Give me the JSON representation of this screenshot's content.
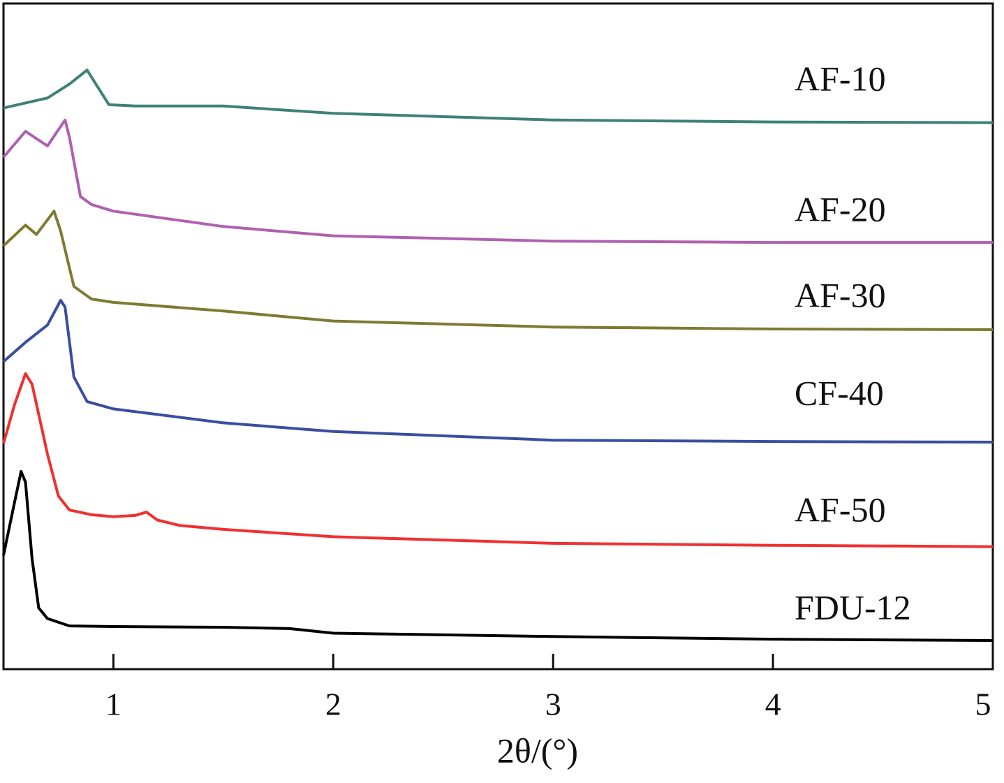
{
  "chart_data": {
    "type": "line",
    "x_label": "2θ/(°)",
    "xlim": [
      0.5,
      5
    ],
    "xticks": [
      1,
      2,
      3,
      4,
      5
    ],
    "ylim": [
      0,
      100
    ],
    "series": [
      {
        "name": "AF-10",
        "color": "#3f8079",
        "x": [
          0.5,
          0.7,
          0.8,
          0.88,
          0.92,
          0.98,
          1.1,
          1.5,
          2,
          3,
          4,
          5
        ],
        "values": [
          84.3,
          85.8,
          87.9,
          90.0,
          87.9,
          84.8,
          84.6,
          84.6,
          83.5,
          82.5,
          82.2,
          82.1
        ]
      },
      {
        "name": "AF-20",
        "color": "#b060b0",
        "x": [
          0.5,
          0.6,
          0.7,
          0.78,
          0.8,
          0.85,
          0.9,
          1.0,
          1.5,
          2,
          3,
          4,
          5
        ],
        "values": [
          76.9,
          80.8,
          78.6,
          82.5,
          79.9,
          71.0,
          69.8,
          68.8,
          66.5,
          65.1,
          64.3,
          64.1,
          64.1
        ]
      },
      {
        "name": "AF-30",
        "color": "#7f7a32",
        "x": [
          0.5,
          0.6,
          0.65,
          0.73,
          0.76,
          0.82,
          0.9,
          1.0,
          1.5,
          2,
          3,
          4,
          5
        ],
        "values": [
          63.6,
          66.7,
          65.3,
          68.8,
          65.8,
          57.5,
          55.6,
          55.1,
          53.8,
          52.3,
          51.4,
          51.1,
          51.0
        ]
      },
      {
        "name": "CF-40",
        "color": "#3a4ea0",
        "x": [
          0.5,
          0.6,
          0.7,
          0.76,
          0.78,
          0.82,
          0.88,
          1.0,
          1.5,
          2,
          3,
          4,
          5
        ],
        "values": [
          46.2,
          49.1,
          51.7,
          55.4,
          54.4,
          43.9,
          40.2,
          39.1,
          37.0,
          35.7,
          34.4,
          34.2,
          34.1
        ]
      },
      {
        "name": "AF-50",
        "color": "#f03030",
        "x": [
          0.5,
          0.55,
          0.6,
          0.63,
          0.7,
          0.75,
          0.8,
          0.9,
          1.0,
          1.1,
          1.15,
          1.2,
          1.3,
          1.5,
          2,
          3,
          4,
          5
        ],
        "values": [
          33.9,
          39.7,
          44.4,
          42.8,
          32.3,
          26.0,
          23.9,
          23.2,
          22.9,
          23.1,
          23.6,
          22.4,
          21.6,
          21.0,
          19.9,
          18.9,
          18.6,
          18.4
        ]
      },
      {
        "name": "FDU-12",
        "color": "#000000",
        "x": [
          0.5,
          0.55,
          0.58,
          0.6,
          0.63,
          0.66,
          0.7,
          0.8,
          1.0,
          1.5,
          1.8,
          2,
          3,
          4,
          5
        ],
        "values": [
          17.1,
          25.0,
          29.7,
          28.1,
          16.6,
          9.2,
          7.6,
          6.5,
          6.4,
          6.3,
          6.1,
          5.4,
          4.9,
          4.5,
          4.3
        ]
      }
    ]
  }
}
